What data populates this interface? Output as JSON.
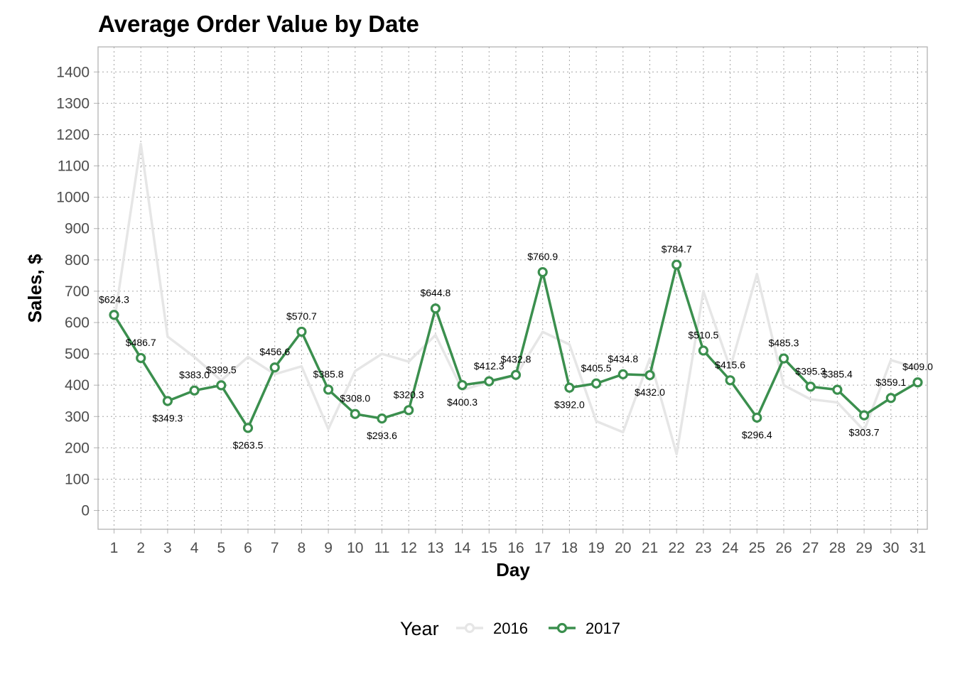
{
  "chart_data": {
    "type": "line",
    "title": "Average Order Value by Date",
    "xlabel": "Day",
    "ylabel": "Sales, $",
    "x": [
      1,
      2,
      3,
      4,
      5,
      6,
      7,
      8,
      9,
      10,
      11,
      12,
      13,
      14,
      15,
      16,
      17,
      18,
      19,
      20,
      21,
      22,
      23,
      24,
      25,
      26,
      27,
      28,
      29,
      30,
      31
    ],
    "ylim": [
      -60,
      1480
    ],
    "yticks": [
      0,
      100,
      200,
      300,
      400,
      500,
      600,
      700,
      800,
      900,
      1000,
      1100,
      1200,
      1300,
      1400
    ],
    "grid": true,
    "legend": {
      "title": "Year",
      "position": "bottom"
    },
    "series": [
      {
        "name": "2016",
        "color": "#e6e6e6",
        "markers": false,
        "values": [
          600,
          1170,
          555,
          490,
          415,
          490,
          435,
          460,
          260,
          445,
          500,
          475,
          560,
          385,
          410,
          430,
          570,
          530,
          285,
          250,
          485,
          180,
          700,
          455,
          755,
          400,
          355,
          345,
          255,
          480,
          455
        ]
      },
      {
        "name": "2017",
        "color": "#3b8f4e",
        "markers": true,
        "values": [
          624.3,
          486.7,
          349.3,
          383.0,
          399.5,
          263.5,
          456.6,
          570.7,
          385.8,
          308.0,
          293.6,
          320.3,
          644.8,
          400.3,
          412.3,
          432.8,
          760.9,
          392.0,
          405.5,
          434.8,
          432.0,
          784.7,
          510.5,
          415.6,
          296.4,
          485.3,
          395.3,
          385.4,
          303.7,
          359.1,
          409.0
        ],
        "labels": [
          "$624.3",
          "$486.7",
          "$349.3",
          "$383.0",
          "$399.5",
          "$263.5",
          "$456.6",
          "$570.7",
          "$385.8",
          "$308.0",
          "$293.6",
          "$320.3",
          "$644.8",
          "$400.3",
          "$412.3",
          "$432.8",
          "$760.9",
          "$392.0",
          "$405.5",
          "$434.8",
          "$432.0",
          "$784.7",
          "$510.5",
          "$415.6",
          "$296.4",
          "$485.3",
          "$395.3",
          "$385.4",
          "$303.7",
          "$359.1",
          "$409.0"
        ]
      }
    ]
  }
}
